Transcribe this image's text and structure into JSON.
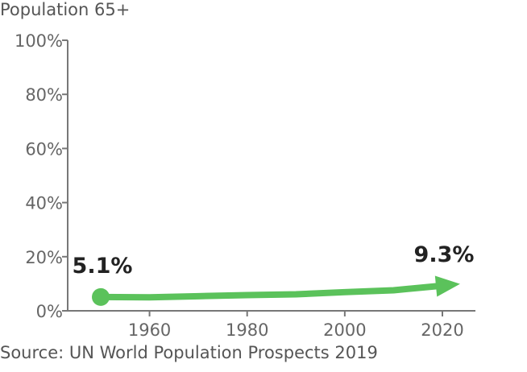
{
  "chart_data": {
    "type": "line",
    "title": "Population 65+",
    "source": "Source: UN World Population Prospects 2019",
    "xlim": [
      1950,
      2020
    ],
    "ylim": [
      0,
      100
    ],
    "x_ticks": [
      1960,
      1980,
      2000,
      2020
    ],
    "y_ticks": [
      0,
      20,
      40,
      60,
      80,
      100
    ],
    "y_tick_labels": [
      "0%",
      "20%",
      "40%",
      "60%",
      "80%",
      "100%"
    ],
    "grid": false,
    "legend": "none",
    "series": [
      {
        "color": "#5bc25b",
        "x": [
          1950,
          1960,
          1970,
          1980,
          1990,
          2000,
          2010,
          2020
        ],
        "y": [
          5.1,
          5.0,
          5.4,
          5.8,
          6.1,
          6.9,
          7.6,
          9.3
        ]
      }
    ],
    "annotations": [
      {
        "x": 1950,
        "y": 5.1,
        "text": "5.1%",
        "position": "above"
      },
      {
        "x": 2020,
        "y": 9.3,
        "text": "9.3%",
        "position": "above"
      }
    ]
  }
}
